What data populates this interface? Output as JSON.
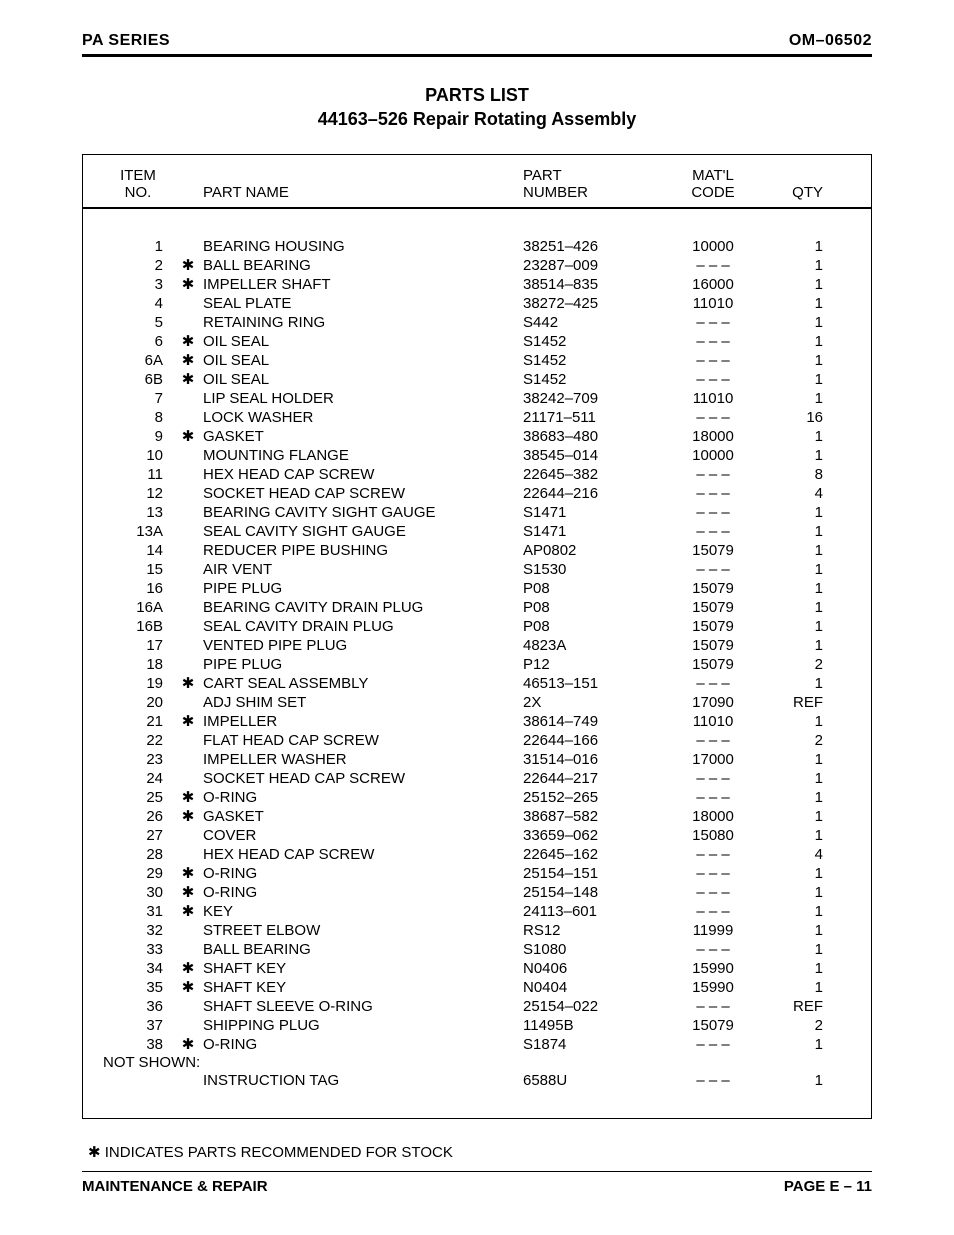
{
  "header": {
    "left": "PA SERIES",
    "right": "OM–06502"
  },
  "title": {
    "line1": "PARTS LIST",
    "line2": "44163–526 Repair Rotating Assembly"
  },
  "columns": {
    "item_l1": "ITEM",
    "item_l2": "NO.",
    "name": "PART NAME",
    "part_l1": "PART",
    "part_l2": "NUMBER",
    "matl_l1": "MAT'L",
    "matl_l2": "CODE",
    "qty": "QTY"
  },
  "star_glyph": "✱",
  "dash": "– – –",
  "rows": [
    {
      "item": "1",
      "star": false,
      "name": "BEARING HOUSING",
      "part": "38251–426",
      "matl": "10000",
      "qty": "1"
    },
    {
      "item": "2",
      "star": true,
      "name": "BALL BEARING",
      "part": "23287–009",
      "matl": "",
      "qty": "1"
    },
    {
      "item": "3",
      "star": true,
      "name": "IMPELLER SHAFT",
      "part": "38514–835",
      "matl": "16000",
      "qty": "1"
    },
    {
      "item": "4",
      "star": false,
      "name": "SEAL PLATE",
      "part": "38272–425",
      "matl": "11010",
      "qty": "1"
    },
    {
      "item": "5",
      "star": false,
      "name": "RETAINING RING",
      "part": "S442",
      "matl": "",
      "qty": "1"
    },
    {
      "item": "6",
      "star": true,
      "name": "OIL SEAL",
      "part": "S1452",
      "matl": "",
      "qty": "1"
    },
    {
      "item": "6A",
      "star": true,
      "name": "OIL SEAL",
      "part": "S1452",
      "matl": "",
      "qty": "1"
    },
    {
      "item": "6B",
      "star": true,
      "name": "OIL SEAL",
      "part": "S1452",
      "matl": "",
      "qty": "1"
    },
    {
      "item": "7",
      "star": false,
      "name": "LIP SEAL HOLDER",
      "part": "38242–709",
      "matl": "11010",
      "qty": "1"
    },
    {
      "item": "8",
      "star": false,
      "name": "LOCK WASHER",
      "part": "21171–511",
      "matl": "",
      "qty": "16"
    },
    {
      "item": "9",
      "star": true,
      "name": "GASKET",
      "part": "38683–480",
      "matl": "18000",
      "qty": "1"
    },
    {
      "item": "10",
      "star": false,
      "name": "MOUNTING FLANGE",
      "part": "38545–014",
      "matl": "10000",
      "qty": "1"
    },
    {
      "item": "11",
      "star": false,
      "name": "HEX HEAD CAP SCREW",
      "part": "22645–382",
      "matl": "",
      "qty": "8"
    },
    {
      "item": "12",
      "star": false,
      "name": "SOCKET HEAD CAP SCREW",
      "part": "22644–216",
      "matl": "",
      "qty": "4"
    },
    {
      "item": "13",
      "star": false,
      "name": "BEARING CAVITY SIGHT GAUGE",
      "part": "S1471",
      "matl": "",
      "qty": "1"
    },
    {
      "item": "13A",
      "star": false,
      "name": "SEAL CAVITY SIGHT GAUGE",
      "part": "S1471",
      "matl": "",
      "qty": "1"
    },
    {
      "item": "14",
      "star": false,
      "name": "REDUCER PIPE BUSHING",
      "part": "AP0802",
      "matl": "15079",
      "qty": "1"
    },
    {
      "item": "15",
      "star": false,
      "name": "AIR VENT",
      "part": "S1530",
      "matl": "",
      "qty": "1"
    },
    {
      "item": "16",
      "star": false,
      "name": "PIPE PLUG",
      "part": "P08",
      "matl": "15079",
      "qty": "1"
    },
    {
      "item": "16A",
      "star": false,
      "name": "BEARING CAVITY DRAIN PLUG",
      "part": "P08",
      "matl": "15079",
      "qty": "1"
    },
    {
      "item": "16B",
      "star": false,
      "name": "SEAL CAVITY DRAIN PLUG",
      "part": "P08",
      "matl": "15079",
      "qty": "1"
    },
    {
      "item": "17",
      "star": false,
      "name": "VENTED PIPE PLUG",
      "part": "4823A",
      "matl": "15079",
      "qty": "1"
    },
    {
      "item": "18",
      "star": false,
      "name": "PIPE PLUG",
      "part": "P12",
      "matl": "15079",
      "qty": "2"
    },
    {
      "item": "19",
      "star": true,
      "name": "CART SEAL ASSEMBLY",
      "part": "46513–151",
      "matl": "",
      "qty": "1"
    },
    {
      "item": "20",
      "star": false,
      "name": "ADJ SHIM SET",
      "part": "2X",
      "matl": "17090",
      "qty": "REF"
    },
    {
      "item": "21",
      "star": true,
      "name": "IMPELLER",
      "part": "38614–749",
      "matl": "11010",
      "qty": "1"
    },
    {
      "item": "22",
      "star": false,
      "name": "FLAT HEAD CAP SCREW",
      "part": "22644–166",
      "matl": "",
      "qty": "2"
    },
    {
      "item": "23",
      "star": false,
      "name": "IMPELLER WASHER",
      "part": "31514–016",
      "matl": "17000",
      "qty": "1"
    },
    {
      "item": "24",
      "star": false,
      "name": "SOCKET HEAD CAP SCREW",
      "part": "22644–217",
      "matl": "",
      "qty": "1"
    },
    {
      "item": "25",
      "star": true,
      "name": "O-RING",
      "part": "25152–265",
      "matl": "",
      "qty": "1"
    },
    {
      "item": "26",
      "star": true,
      "name": "GASKET",
      "part": "38687–582",
      "matl": "18000",
      "qty": "1"
    },
    {
      "item": "27",
      "star": false,
      "name": "COVER",
      "part": "33659–062",
      "matl": "15080",
      "qty": "1"
    },
    {
      "item": "28",
      "star": false,
      "name": "HEX HEAD CAP SCREW",
      "part": "22645–162",
      "matl": "",
      "qty": "4"
    },
    {
      "item": "29",
      "star": true,
      "name": "O-RING",
      "part": "25154–151",
      "matl": "",
      "qty": "1"
    },
    {
      "item": "30",
      "star": true,
      "name": "O-RING",
      "part": "25154–148",
      "matl": "",
      "qty": "1"
    },
    {
      "item": "31",
      "star": true,
      "name": "KEY",
      "part": "24113–601",
      "matl": "",
      "qty": "1"
    },
    {
      "item": "32",
      "star": false,
      "name": "STREET ELBOW",
      "part": "RS12",
      "matl": "11999",
      "qty": "1"
    },
    {
      "item": "33",
      "star": false,
      "name": "BALL BEARING",
      "part": "S1080",
      "matl": "",
      "qty": "1"
    },
    {
      "item": "34",
      "star": true,
      "name": "SHAFT KEY",
      "part": "N0406",
      "matl": "15990",
      "qty": "1"
    },
    {
      "item": "35",
      "star": true,
      "name": "SHAFT KEY",
      "part": "N0404",
      "matl": "15990",
      "qty": "1"
    },
    {
      "item": "36",
      "star": false,
      "name": "SHAFT SLEEVE O-RING",
      "part": "25154–022",
      "matl": "",
      "qty": "REF"
    },
    {
      "item": "37",
      "star": false,
      "name": "SHIPPING PLUG",
      "part": "11495B",
      "matl": "15079",
      "qty": "2"
    },
    {
      "item": "38",
      "star": true,
      "name": "O-RING",
      "part": "S1874",
      "matl": "",
      "qty": "1"
    }
  ],
  "not_shown_label": "NOT SHOWN:",
  "not_shown_rows": [
    {
      "item": "",
      "star": false,
      "name": "INSTRUCTION TAG",
      "part": "6588U",
      "matl": "",
      "qty": "1"
    }
  ],
  "footnote": "✱ INDICATES PARTS RECOMMENDED FOR STOCK",
  "footer": {
    "left": "MAINTENANCE & REPAIR",
    "right": "PAGE E – 11"
  }
}
